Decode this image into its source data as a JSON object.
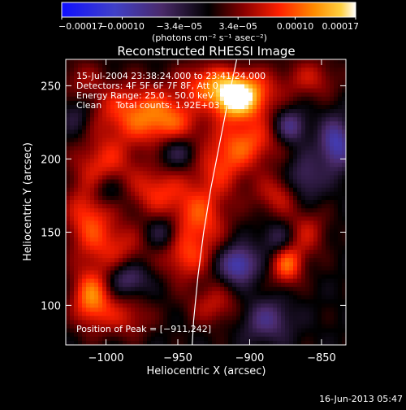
{
  "chart_data": {
    "type": "heatmap",
    "title": "Reconstructed RHESSI Image",
    "xlabel": "Heliocentric X (arcsec)",
    "ylabel": "Heliocentric Y (arcsec)",
    "xlim": [
      -1028,
      -833
    ],
    "ylim": [
      73,
      268
    ],
    "x_ticks": [
      -1000,
      -950,
      -900,
      -850
    ],
    "x_tick_labels": [
      "−1000",
      "−950",
      "−900",
      "−850"
    ],
    "y_ticks": [
      100,
      150,
      200,
      250
    ],
    "y_tick_labels": [
      "100",
      "150",
      "200",
      "250"
    ],
    "colorbar": {
      "range": [
        -0.00017,
        0.00017
      ],
      "ticks": [
        -0.00017,
        -0.0001,
        -3.4e-05,
        3.4e-05,
        0.0001,
        0.00017
      ],
      "tick_labels": [
        "−0.00017",
        "−0.00010",
        "−3.4e−05",
        "3.4e−05",
        "0.00010",
        "0.00017"
      ],
      "units_label": "(photons cm⁻² s⁻¹ asec⁻²)"
    },
    "annotations": [
      "15-Jul-2004 23:38:24.000 to 23:41:24.000",
      "Detectors: 4F 5F 6F 7F 8F, Att 0",
      "Energy Range: 25.0 – 50.0 keV",
      "Clean     Total counts: 1.92E+03",
      "Position of Peak = [−911,242]"
    ],
    "peak": {
      "x": -911,
      "y": 242,
      "value": 0.00017
    },
    "limb_curve": [
      {
        "x": -909,
        "y": 268
      },
      {
        "x": -915,
        "y": 240
      },
      {
        "x": -921,
        "y": 210
      },
      {
        "x": -927,
        "y": 180
      },
      {
        "x": -932,
        "y": 150
      },
      {
        "x": -936,
        "y": 120
      },
      {
        "x": -939,
        "y": 90
      },
      {
        "x": -940,
        "y": 73
      }
    ],
    "features": [
      {
        "x": -911,
        "y": 242,
        "sx": 11,
        "sy": 10,
        "amp": 1.3
      },
      {
        "x": -930,
        "y": 252,
        "sx": 14,
        "sy": 10,
        "amp": 0.65
      },
      {
        "x": -895,
        "y": 245,
        "sx": 12,
        "sy": 12,
        "amp": 0.55
      },
      {
        "x": -982,
        "y": 232,
        "sx": 22,
        "sy": 15,
        "amp": 0.7
      },
      {
        "x": -955,
        "y": 225,
        "sx": 16,
        "sy": 12,
        "amp": 0.55
      },
      {
        "x": -900,
        "y": 212,
        "sx": 16,
        "sy": 12,
        "amp": 0.65
      },
      {
        "x": -920,
        "y": 195,
        "sx": 14,
        "sy": 14,
        "amp": 0.55
      },
      {
        "x": -1000,
        "y": 198,
        "sx": 15,
        "sy": 12,
        "amp": 0.5
      },
      {
        "x": -965,
        "y": 178,
        "sx": 14,
        "sy": 12,
        "amp": 0.6
      },
      {
        "x": -935,
        "y": 160,
        "sx": 14,
        "sy": 16,
        "amp": 0.7
      },
      {
        "x": -880,
        "y": 175,
        "sx": 12,
        "sy": 10,
        "amp": 0.5
      },
      {
        "x": -860,
        "y": 150,
        "sx": 10,
        "sy": 12,
        "amp": 0.45
      },
      {
        "x": -1012,
        "y": 160,
        "sx": 12,
        "sy": 20,
        "amp": 0.7
      },
      {
        "x": -990,
        "y": 140,
        "sx": 13,
        "sy": 12,
        "amp": 0.45
      },
      {
        "x": -945,
        "y": 132,
        "sx": 12,
        "sy": 12,
        "amp": 0.55
      },
      {
        "x": -874,
        "y": 128,
        "sx": 8,
        "sy": 10,
        "amp": 0.8
      },
      {
        "x": -1010,
        "y": 105,
        "sx": 10,
        "sy": 14,
        "amp": 0.9
      },
      {
        "x": -985,
        "y": 92,
        "sx": 12,
        "sy": 10,
        "amp": 0.45
      },
      {
        "x": -925,
        "y": 100,
        "sx": 13,
        "sy": 10,
        "amp": 0.45
      },
      {
        "x": -858,
        "y": 255,
        "sx": 14,
        "sy": 10,
        "amp": 0.45
      },
      {
        "x": -1018,
        "y": 255,
        "sx": 10,
        "sy": 10,
        "amp": 0.3
      },
      {
        "x": -840,
        "y": 210,
        "sx": 8,
        "sy": 12,
        "amp": -0.75
      },
      {
        "x": -908,
        "y": 128,
        "sx": 9,
        "sy": 9,
        "amp": -0.8
      },
      {
        "x": -872,
        "y": 222,
        "sx": 8,
        "sy": 8,
        "amp": -0.6
      },
      {
        "x": -985,
        "y": 118,
        "sx": 10,
        "sy": 8,
        "amp": -0.5
      },
      {
        "x": -950,
        "y": 205,
        "sx": 10,
        "sy": 8,
        "amp": -0.45
      },
      {
        "x": -1000,
        "y": 178,
        "sx": 9,
        "sy": 8,
        "amp": -0.4
      },
      {
        "x": -862,
        "y": 185,
        "sx": 9,
        "sy": 12,
        "amp": -0.45
      },
      {
        "x": -888,
        "y": 90,
        "sx": 12,
        "sy": 10,
        "amp": -0.5
      },
      {
        "x": -960,
        "y": 150,
        "sx": 8,
        "sy": 8,
        "amp": -0.4
      },
      {
        "x": -1020,
        "y": 230,
        "sx": 8,
        "sy": 10,
        "amp": -0.35
      },
      {
        "x": -880,
        "y": 145,
        "sx": 8,
        "sy": 8,
        "amp": -0.4
      }
    ]
  },
  "footer": {
    "timestamp": "16-Jun-2013 05:47"
  }
}
